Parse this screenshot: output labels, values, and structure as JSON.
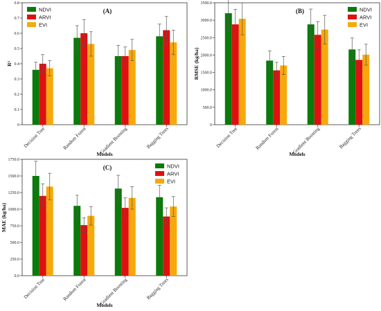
{
  "colors": {
    "NDVI": "#0a7a0a",
    "ARVI": "#e01010",
    "EVI": "#f7a90c"
  },
  "chart_data": [
    {
      "type": "bar",
      "panel_label": "(A)",
      "categories": [
        "Decision Tree",
        "Random Forest",
        "Gradient Boosting",
        "Bagging Trees"
      ],
      "xlabel": "Models",
      "ylabel": "R²",
      "ylim": [
        0,
        0.8
      ],
      "yticks": [
        "0",
        "0.1",
        "0.2",
        "0.3",
        "0.4",
        "0.5",
        "0.6",
        "0.7",
        "0.8"
      ],
      "legend_position": "top-left",
      "series": [
        {
          "name": "NDVI",
          "values": [
            0.36,
            0.57,
            0.45,
            0.58
          ],
          "errors": [
            0.05,
            0.08,
            0.07,
            0.08
          ]
        },
        {
          "name": "ARVI",
          "values": [
            0.4,
            0.6,
            0.45,
            0.62
          ],
          "errors": [
            0.06,
            0.09,
            0.06,
            0.09
          ]
        },
        {
          "name": "EVI",
          "values": [
            0.37,
            0.53,
            0.49,
            0.54
          ],
          "errors": [
            0.05,
            0.08,
            0.07,
            0.08
          ]
        }
      ]
    },
    {
      "type": "bar",
      "panel_label": "(B)",
      "categories": [
        "Decision Tree",
        "Random Forest",
        "Gradient Boosting",
        "Bagging Trees"
      ],
      "xlabel": "Models",
      "ylabel": "RMSE (kg/ha)",
      "ylim": [
        0,
        3500
      ],
      "yticks": [
        "0",
        "500.0",
        "1000.0",
        "1500.0",
        "2000.0",
        "2500.0",
        "3000.0",
        "3500.0"
      ],
      "legend_position": "top-right",
      "series": [
        {
          "name": "NDVI",
          "values": [
            3200,
            1840,
            2880,
            2160
          ],
          "errors": [
            480,
            280,
            440,
            330
          ]
        },
        {
          "name": "ARVI",
          "values": [
            2880,
            1560,
            2580,
            1860
          ],
          "errors": [
            430,
            230,
            380,
            290
          ]
        },
        {
          "name": "EVI",
          "values": [
            3040,
            1700,
            2730,
            2010
          ],
          "errors": [
            460,
            260,
            410,
            300
          ]
        }
      ]
    },
    {
      "type": "bar",
      "panel_label": "(C)",
      "categories": [
        "Decision Tree",
        "Random Forest",
        "Gradient Boosting",
        "Bagging Trees"
      ],
      "xlabel": "Models",
      "ylabel": "MAE (kg/ha)",
      "ylim": [
        0,
        1750
      ],
      "yticks": [
        "0.0",
        "250.0",
        "500.0",
        "750.0",
        "1000.0",
        "1250.0",
        "1500.0",
        "1750.0"
      ],
      "legend_position": "top-right",
      "series": [
        {
          "name": "NDVI",
          "values": [
            1500,
            1050,
            1310,
            1180
          ],
          "errors": [
            220,
            160,
            200,
            180
          ]
        },
        {
          "name": "ARVI",
          "values": [
            1200,
            760,
            1020,
            890
          ],
          "errors": [
            180,
            110,
            150,
            130
          ]
        },
        {
          "name": "EVI",
          "values": [
            1340,
            900,
            1170,
            1040
          ],
          "errors": [
            200,
            140,
            170,
            150
          ]
        }
      ]
    }
  ]
}
